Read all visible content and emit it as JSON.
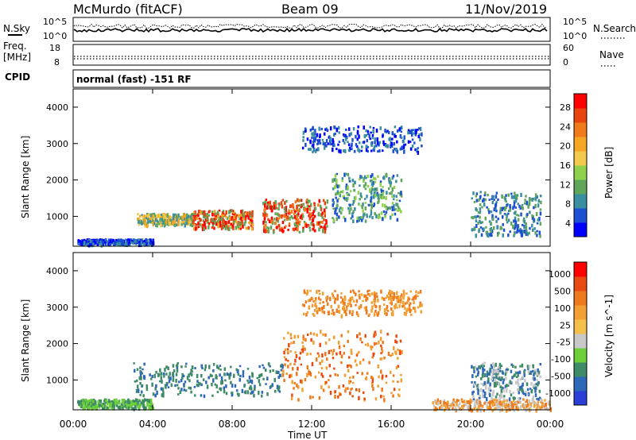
{
  "header": {
    "station": "McMurdo (fitACF)",
    "beam": "Beam 09",
    "date": "11/Nov/2019"
  },
  "status_panels": {
    "nsky_label": "N.Sky",
    "nsearch_label": "N.Search",
    "noise_ticks": [
      "10^5",
      "10^0"
    ],
    "freq_label_line1": "Freq.",
    "freq_label_line2": "[MHz]",
    "freq_ticks": [
      "18",
      "8"
    ],
    "nave_label": "Nave",
    "nave_ticks": [
      "60",
      "0"
    ],
    "cpid_label": "CPID",
    "cpid_text": "normal (fast) -151 RF"
  },
  "chart_data": [
    {
      "type": "heatmap",
      "name": "power-panel",
      "ylabel": "Slant Range [km]",
      "xlabel": "Time UT",
      "yticks": [
        "4000",
        "3000",
        "2000",
        "1000"
      ],
      "xticks": [
        "00:00",
        "04:00",
        "08:00",
        "12:00",
        "16:00",
        "20:00",
        "00:00"
      ],
      "xlim_hours": [
        0,
        24
      ],
      "ylim_km": [
        180,
        4500
      ],
      "colorbar_title": "Power [dB]",
      "colorbar_ticks": [
        "28",
        "24",
        "20",
        "16",
        "12",
        "8",
        "4"
      ],
      "colorbar_colors": [
        "#0000ff",
        "#1c4fd1",
        "#3a8ea0",
        "#5fa55a",
        "#8fd14a",
        "#f2c94c",
        "#f5a623",
        "#f07b1a",
        "#e8440f",
        "#ff0000"
      ]
    },
    {
      "type": "heatmap",
      "name": "velocity-panel",
      "ylabel": "Slant Range [km]",
      "xlabel": "Time UT",
      "yticks": [
        "4000",
        "3000",
        "2000",
        "1000"
      ],
      "xticks": [
        "00:00",
        "04:00",
        "08:00",
        "12:00",
        "16:00",
        "20:00",
        "00:00"
      ],
      "xlim_hours": [
        0,
        24
      ],
      "ylim_km": [
        180,
        4500
      ],
      "colorbar_title": "Velocity [m s^-1]",
      "colorbar_ticks": [
        "1000",
        "500",
        "100",
        "25",
        "-25",
        "-100",
        "-500",
        "-1000"
      ],
      "colorbar_colors": [
        "#2a3fd8",
        "#2e68b8",
        "#3f8a67",
        "#6ccf3a",
        "#c8c8c8",
        "#f3c04a",
        "#f2a033",
        "#ee7a1f",
        "#e84a12",
        "#ff0000"
      ]
    }
  ]
}
